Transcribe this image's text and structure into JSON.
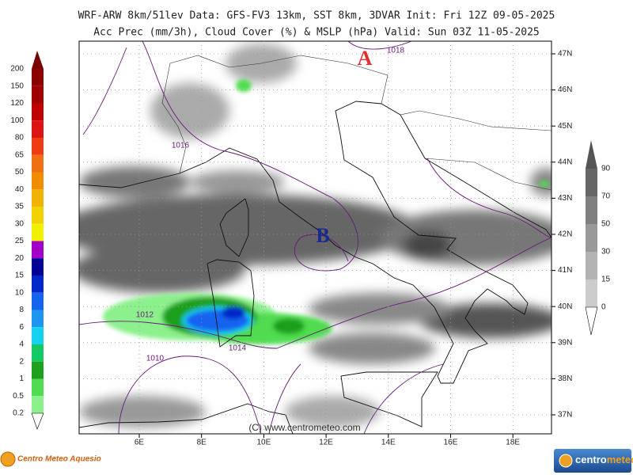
{
  "header": {
    "line1": "WRF-ARW 8km/51lev  Data: GFS-FV3 13km, SST 8km, 3DVAR  Init: Fri 12Z 09-05-2025",
    "line2": "Acc Prec (mm/3h), Cloud Cover (%) & MSLP (hPa)  Valid: Sun 03Z 11-05-2025"
  },
  "precip_scale": {
    "labels": [
      "200",
      "150",
      "120",
      "100",
      "80",
      "65",
      "50",
      "40",
      "35",
      "30",
      "25",
      "20",
      "15",
      "10",
      "8",
      "6",
      "4",
      "2",
      "1",
      "0.5",
      "0.2"
    ]
  },
  "cloud_scale": {
    "labels": [
      "90",
      "70",
      "50",
      "30",
      "15",
      "0"
    ]
  },
  "lat_labels": [
    "47N",
    "46N",
    "45N",
    "44N",
    "43N",
    "42N",
    "41N",
    "40N",
    "39N",
    "38N",
    "37N"
  ],
  "lon_labels": [
    "6E",
    "8E",
    "10E",
    "12E",
    "14E",
    "16E",
    "18E"
  ],
  "isobar_labels": [
    "1018",
    "1016",
    "1012",
    "1010",
    "1014"
  ],
  "pressure_centers": {
    "high": "A",
    "low": "B"
  },
  "credit": "(C) www.centrometeo.com",
  "logos": {
    "left": "Centro Meteo Aquesio",
    "right": [
      "centro",
      "meteo"
    ]
  }
}
